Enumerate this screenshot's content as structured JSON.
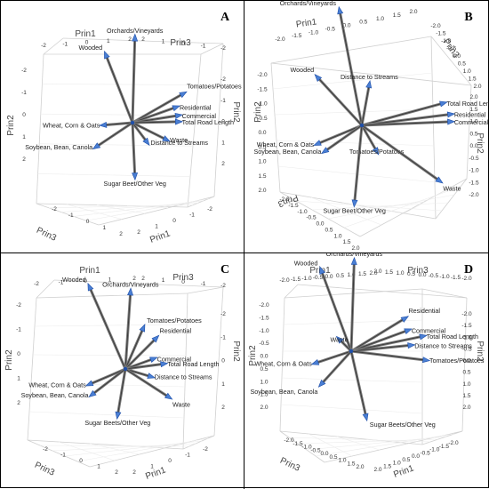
{
  "chart_data": [
    {
      "type": "vector-plot-3d",
      "panel": "A",
      "axes": [
        "Prin1",
        "Prin2",
        "Prin3"
      ],
      "axis_titles": {
        "top_left": "Prin1",
        "top_right": "Prin3",
        "left": "Prin2",
        "right": "Prin2",
        "bottom_left": "Prin3",
        "bottom_right": "Prin1"
      },
      "ticks": {
        "top_left": [
          "-2",
          "-1",
          "0",
          "1",
          "2"
        ],
        "top_right": [
          "2",
          "1",
          "0",
          "-1",
          "-2"
        ],
        "left": [
          "-2",
          "-1",
          "0",
          "1",
          "2"
        ],
        "right": [
          "-2",
          "-1",
          "0",
          "1",
          "2"
        ],
        "bottom_left": [
          "-2",
          "-1",
          "0",
          "1",
          "2"
        ],
        "bottom_right": [
          "2",
          "1",
          "0",
          "-1",
          "-2"
        ]
      },
      "vectors": [
        {
          "label": "Orchards/Vineyards",
          "dx": 0.05,
          "dy": -1.75
        },
        {
          "label": "Wooded",
          "dx": -0.55,
          "dy": -1.4
        },
        {
          "label": "Tomatoes/Potatoes",
          "dx": 1.05,
          "dy": -0.6
        },
        {
          "label": "Residential",
          "dx": 0.9,
          "dy": -0.32
        },
        {
          "label": "Commercial",
          "dx": 0.95,
          "dy": -0.15
        },
        {
          "label": "Total Road Length",
          "dx": 0.95,
          "dy": -0.02
        },
        {
          "label": "Waste",
          "dx": 0.7,
          "dy": 0.35
        },
        {
          "label": "Distance to Streams",
          "dx": 0.3,
          "dy": 0.4
        },
        {
          "label": "Wheat, Corn & Oats",
          "dx": -0.6,
          "dy": 0.05
        },
        {
          "label": "Soybean, Bean, Canola",
          "dx": -0.75,
          "dy": 0.5
        },
        {
          "label": "Sugar Beet/Other Veg",
          "dx": 0.05,
          "dy": 1.1
        }
      ]
    },
    {
      "type": "vector-plot-3d",
      "panel": "B",
      "axes": [
        "Prin1",
        "Prin2",
        "Prin3"
      ],
      "axis_titles": {
        "top_left": "Prin1",
        "top_right": "Prin3",
        "left": "Prin2",
        "right": "Prin2",
        "bottom_left": "Prin3",
        "bottom_right": ""
      },
      "ticks": {
        "top_left": [
          "-2.0",
          "-1.5",
          "-1.0",
          "-0.5",
          "0.0",
          "0.5",
          "1.0",
          "1.5",
          "2.0"
        ],
        "top_right": [
          "-2.0",
          "-1.5",
          "-1.0",
          "-0.5",
          "0.0",
          "0.5",
          "1.0",
          "1.5",
          "2.0"
        ],
        "left": [
          "-2.0",
          "-1.5",
          "-1.0",
          "-0.5",
          "0.0",
          "0.5",
          "1.0",
          "1.5",
          "2.0"
        ],
        "right": [
          "2.0",
          "1.5",
          "1.0",
          "0.5",
          "0.0",
          "-0.5",
          "-1.0",
          "-1.5",
          "-2.0"
        ],
        "bottom_left": [
          "-2.0",
          "-1.5",
          "-1.0",
          "-0.5",
          "0.0",
          "0.5",
          "1.0",
          "1.5",
          "2.0"
        ],
        "bottom_right": []
      },
      "vectors": [
        {
          "label": "Orchards/Vineyards",
          "dx": -0.3,
          "dy": -1.55
        },
        {
          "label": "Wooded",
          "dx": -0.6,
          "dy": -0.65
        },
        {
          "label": "Distance to Streams",
          "dx": 0.1,
          "dy": -0.55
        },
        {
          "label": "Total Road Length",
          "dx": 1.1,
          "dy": -0.3
        },
        {
          "label": "Residential",
          "dx": 1.2,
          "dy": -0.15
        },
        {
          "label": "Commercial",
          "dx": 1.2,
          "dy": -0.05
        },
        {
          "label": "Tomatoes/Potatoes",
          "dx": 0.2,
          "dy": 0.35
        },
        {
          "label": "Waste",
          "dx": 1.05,
          "dy": 0.75
        },
        {
          "label": "Wheat, Corn & Oats",
          "dx": -0.6,
          "dy": 0.25
        },
        {
          "label": "Soybean, Bean, Canola",
          "dx": -0.5,
          "dy": 0.35
        },
        {
          "label": "Sugar Beet/Other Veg",
          "dx": -0.1,
          "dy": 1.05
        }
      ]
    },
    {
      "type": "vector-plot-3d",
      "panel": "C",
      "axes": [
        "Prin1",
        "Prin2",
        "Prin3"
      ],
      "axis_titles": {
        "top_left": "Prin1",
        "top_right": "Prin3",
        "left": "Prin2",
        "right": "Prin2",
        "bottom_left": "Prin3",
        "bottom_right": "Prin1"
      },
      "ticks": {
        "top_left": [
          "-2",
          "-1",
          "0",
          "1",
          "2"
        ],
        "top_right": [
          "2",
          "1",
          "0",
          "-1",
          "-2"
        ],
        "left": [
          "-2",
          "-1",
          "0",
          "1",
          "2"
        ],
        "right": [
          "-2",
          "-1",
          "0",
          "1",
          "2"
        ],
        "bottom_left": [
          "-2",
          "-1",
          "0",
          "1",
          "2"
        ],
        "bottom_right": [
          "2",
          "1",
          "0",
          "-1",
          "-2"
        ]
      },
      "vectors": [
        {
          "label": "Wooded",
          "dx": -0.7,
          "dy": -1.6
        },
        {
          "label": "Orchards/Vineyards",
          "dx": 0.1,
          "dy": -1.5
        },
        {
          "label": "Tomatoes/Potatoes",
          "dx": 0.35,
          "dy": -0.8
        },
        {
          "label": "Residential",
          "dx": 0.6,
          "dy": -0.6
        },
        {
          "label": "Commercial",
          "dx": 0.55,
          "dy": -0.2
        },
        {
          "label": "Total Road Length",
          "dx": 0.75,
          "dy": -0.1
        },
        {
          "label": "Distance to Streams",
          "dx": 0.5,
          "dy": 0.15
        },
        {
          "label": "Waste",
          "dx": 0.85,
          "dy": 0.55
        },
        {
          "label": "Wheat, Corn & Oats",
          "dx": -0.7,
          "dy": 0.3
        },
        {
          "label": "Soybean, Bean, Canola",
          "dx": -0.65,
          "dy": 0.5
        },
        {
          "label": "Sugar Beets/Other Veg",
          "dx": -0.15,
          "dy": 0.9
        }
      ]
    },
    {
      "type": "vector-plot-3d",
      "panel": "D",
      "axes": [
        "Prin1",
        "Prin2",
        "Prin3"
      ],
      "axis_titles": {
        "top_left": "Prin1",
        "top_right": "Prin3",
        "left": "Prin2",
        "right": "Prin2",
        "bottom_left": "Prin3",
        "bottom_right": "Prin1"
      },
      "ticks": {
        "top_left": [
          "-2.0",
          "-1.5",
          "-1.0",
          "-0.5",
          "0.0",
          "0.5",
          "1.0",
          "1.5",
          "2.0"
        ],
        "top_right": [
          "2.0",
          "1.5",
          "1.0",
          "0.5",
          "0.0",
          "-0.5",
          "-1.0",
          "-1.5",
          "-2.0"
        ],
        "left": [
          "-2.0",
          "-1.5",
          "-1.0",
          "-0.5",
          "0.0",
          "0.5",
          "1.0",
          "1.5",
          "2.0"
        ],
        "right": [
          "-2.0",
          "-1.5",
          "-1.0",
          "-0.5",
          "0.0",
          "0.5",
          "1.0",
          "1.5",
          "2.0"
        ],
        "bottom_left": [
          "-2.0",
          "-1.5",
          "-1.0",
          "-0.5",
          "0.0",
          "0.5",
          "1.0",
          "1.5",
          "2.0"
        ],
        "bottom_right": [
          "2.0",
          "1.5",
          "1.0",
          "0.5",
          "0.0",
          "-0.5",
          "-1.0",
          "-1.5",
          "-2.0"
        ]
      },
      "vectors": [
        {
          "label": "Orchards/Vineyards",
          "dx": 0.05,
          "dy": -1.5
        },
        {
          "label": "Wooded",
          "dx": -0.5,
          "dy": -1.35
        },
        {
          "label": "Residential",
          "dx": 0.9,
          "dy": -0.55
        },
        {
          "label": "Commercial",
          "dx": 0.95,
          "dy": -0.35
        },
        {
          "label": "Total Road Length",
          "dx": 1.2,
          "dy": -0.25
        },
        {
          "label": "Distance to Streams",
          "dx": 1.0,
          "dy": -0.1
        },
        {
          "label": "Tomatoes/Potatoes",
          "dx": 1.25,
          "dy": 0.15
        },
        {
          "label": "Waste",
          "dx": -0.2,
          "dy": -0.2
        },
        {
          "label": "Wheat, Corn & Oats",
          "dx": -0.6,
          "dy": 0.2
        },
        {
          "label": "Soybean, Bean, Canola",
          "dx": -0.5,
          "dy": 0.55
        },
        {
          "label": "Sugar Beets/Other Veg",
          "dx": 0.25,
          "dy": 1.1
        }
      ]
    }
  ]
}
